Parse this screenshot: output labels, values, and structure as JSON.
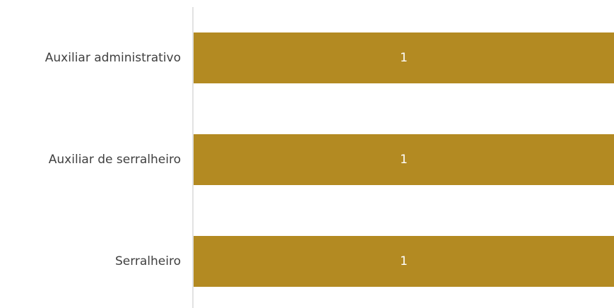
{
  "chart_data": {
    "type": "bar",
    "orientation": "horizontal",
    "categories": [
      "Auxiliar administrativo",
      "Auxiliar de serralheiro",
      "Serralheiro"
    ],
    "values": [
      1,
      1,
      1
    ],
    "data_labels": [
      "1",
      "1",
      "1"
    ],
    "xlim": [
      0,
      1
    ],
    "title": "",
    "xlabel": "",
    "ylabel": "",
    "grid": false,
    "legend": "none",
    "colors": {
      "bar": "#b38a22",
      "axis": "#d9d9d9",
      "category_text": "#404040",
      "data_label_text": "#ffffff"
    }
  }
}
